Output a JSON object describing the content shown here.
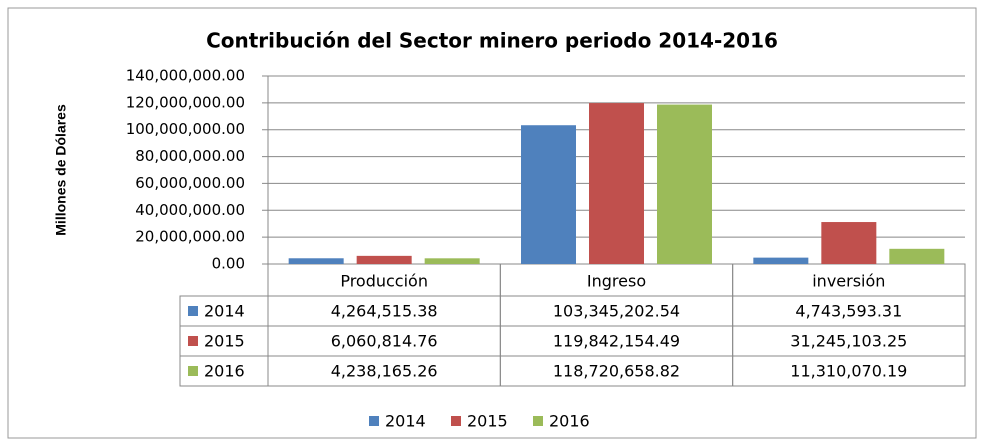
{
  "chart_data": {
    "type": "bar",
    "title": "Contribución del Sector minero periodo 2014-2016",
    "y_label": "Millones de Dólares",
    "categories": [
      "Producción",
      "Ingreso",
      "inversión"
    ],
    "series": [
      {
        "name": "2014",
        "color": "#4f81bd",
        "values": [
          4264515.38,
          103345202.54,
          4743593.31
        ],
        "value_labels": [
          "4,264,515.38",
          "103,345,202.54",
          "4,743,593.31"
        ]
      },
      {
        "name": "2015",
        "color": "#c0504d",
        "values": [
          6060814.76,
          119842154.49,
          31245103.25
        ],
        "value_labels": [
          "6,060,814.76",
          "119,842,154.49",
          "31,245,103.25"
        ]
      },
      {
        "name": "2016",
        "color": "#9bbb59",
        "values": [
          4238165.26,
          118720658.82,
          11310070.19
        ],
        "value_labels": [
          "4,238,165.26",
          "118,720,658.82",
          "11,310,070.19"
        ]
      }
    ],
    "ylim": [
      0,
      140000000
    ],
    "yticks": [
      {
        "value": 0,
        "label": "0.00"
      },
      {
        "value": 20000000,
        "label": "20,000,000.00"
      },
      {
        "value": 40000000,
        "label": "40,000,000.00"
      },
      {
        "value": 60000000,
        "label": "60,000,000.00"
      },
      {
        "value": 80000000,
        "label": "80,000,000.00"
      },
      {
        "value": 100000000,
        "label": "100,000,000.00"
      },
      {
        "value": 120000000,
        "label": "120,000,000.00"
      },
      {
        "value": 140000000,
        "label": "140,000,000.00"
      }
    ],
    "grid": true,
    "legend": "bottom"
  }
}
